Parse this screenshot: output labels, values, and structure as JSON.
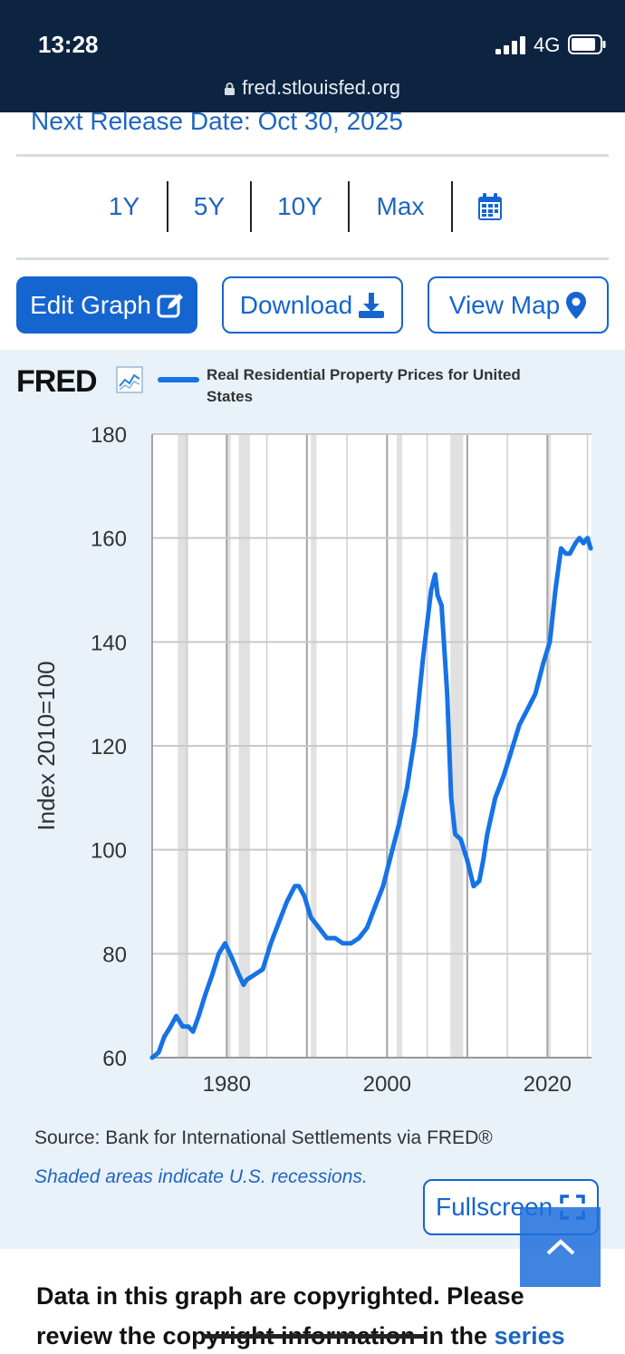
{
  "status_bar": {
    "time": "13:28",
    "network": "4G"
  },
  "browser": {
    "url": "fred.stlouisfed.org"
  },
  "release": {
    "label": "Next Release Date: Oct 30, 2025"
  },
  "ranges": [
    "1Y",
    "5Y",
    "10Y",
    "Max"
  ],
  "buttons": {
    "edit": "Edit Graph",
    "download": "Download",
    "view_map": "View Map",
    "fullscreen": "Fullscreen"
  },
  "graph": {
    "logo": "FRED",
    "legend": "Real Residential Property Prices for United States",
    "source": "Source: Bank for International Settlements via FRED®",
    "recession_note": "Shaded areas indicate U.S. recessions."
  },
  "copyright": {
    "text": "Data in this graph are copyrighted. Please review the copyright information in the",
    "link": "series"
  },
  "colors": {
    "header": "#0c2440",
    "accent": "#1565d0",
    "series": "#1673e6",
    "graph_bg": "#e9f1f9"
  },
  "chart_data": {
    "type": "line",
    "title": "Real Residential Property Prices for United States",
    "ylabel": "Index 2010=100",
    "xlabel": "",
    "xlim": [
      1970.7,
      2025.5
    ],
    "ylim": [
      60,
      180
    ],
    "yticks": [
      60,
      80,
      100,
      120,
      140,
      160,
      180
    ],
    "xticks": [
      1980,
      2000,
      2020
    ],
    "recessions": [
      [
        1973.9,
        1975.2
      ],
      [
        1980.0,
        1980.5
      ],
      [
        1981.5,
        1982.9
      ],
      [
        1990.5,
        1991.2
      ],
      [
        2001.2,
        2001.9
      ],
      [
        2007.9,
        2009.5
      ],
      [
        2020.1,
        2020.4
      ]
    ],
    "series": [
      {
        "name": "Real Residential Property Prices for United States",
        "x": [
          1970.7,
          1971.5,
          1972.2,
          1973.0,
          1973.7,
          1974.5,
          1975.2,
          1975.8,
          1976.5,
          1977.3,
          1978.2,
          1979.0,
          1979.8,
          1980.7,
          1981.5,
          1982.1,
          1982.5,
          1983.5,
          1984.5,
          1985.5,
          1986.5,
          1987.5,
          1988.5,
          1989.0,
          1989.7,
          1990.5,
          1991.5,
          1992.5,
          1993.5,
          1994.5,
          1995.5,
          1996.5,
          1997.5,
          1998.5,
          1999.5,
          2000.5,
          2001.5,
          2002.5,
          2003.5,
          2004.5,
          2005.5,
          2006.0,
          2006.3,
          2006.8,
          2007.5,
          2008.0,
          2008.5,
          2009.2,
          2010.0,
          2010.8,
          2011.5,
          2012.0,
          2012.5,
          2013.5,
          2014.5,
          2015.5,
          2016.5,
          2017.5,
          2018.5,
          2019.5,
          2020.3,
          2021.0,
          2021.7,
          2022.3,
          2022.8,
          2023.5,
          2024.0,
          2024.5,
          2025.0,
          2025.4
        ],
        "values": [
          60,
          61,
          64,
          66,
          68,
          66,
          66,
          65,
          68,
          72,
          76,
          80,
          82,
          79,
          76,
          74,
          75,
          76,
          77,
          82,
          86,
          90,
          93,
          93,
          91,
          87,
          85,
          83,
          83,
          82,
          82,
          83,
          85,
          89,
          93,
          99,
          105,
          112,
          122,
          137,
          150,
          153,
          149,
          147,
          130,
          110,
          103,
          102,
          98,
          93,
          94,
          98,
          103,
          110,
          114,
          119,
          124,
          127,
          130,
          136,
          140,
          150,
          158,
          157,
          157,
          159,
          160,
          159,
          160,
          158
        ]
      }
    ]
  }
}
